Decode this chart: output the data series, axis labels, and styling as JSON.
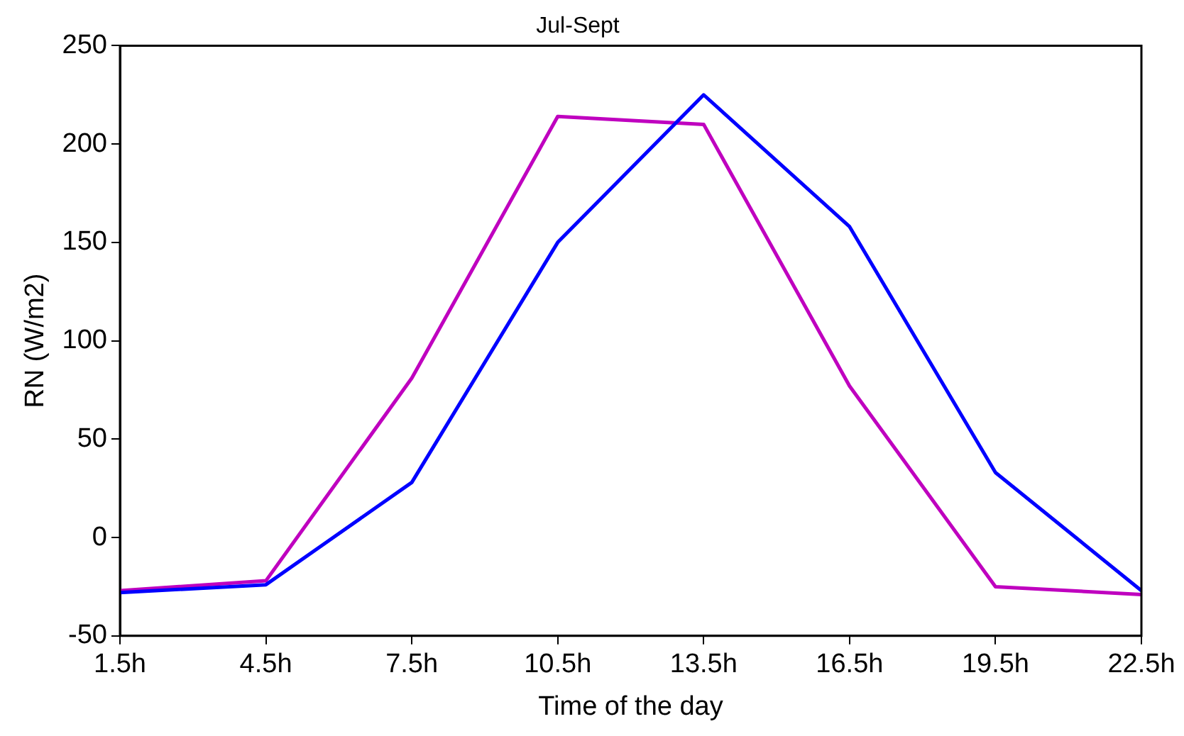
{
  "chart_data": {
    "type": "line",
    "title": "Jul-Sept",
    "xlabel": "Time of the day",
    "ylabel": "RN (W/m2)",
    "x": [
      1.5,
      4.5,
      7.5,
      10.5,
      13.5,
      16.5,
      19.5,
      22.5
    ],
    "series": [
      {
        "color": "#0000ff",
        "values": [
          -28,
          -24,
          28,
          150,
          225,
          158,
          33,
          -27
        ]
      },
      {
        "color": "#bf00bf",
        "values": [
          -27,
          -22,
          81,
          214,
          210,
          77,
          -25,
          -29
        ]
      }
    ],
    "xlim": [
      1.5,
      22.5
    ],
    "xticks": [
      {
        "value": 1.5,
        "label": "1.5h"
      },
      {
        "value": 4.5,
        "label": "4.5h"
      },
      {
        "value": 7.5,
        "label": "7.5h"
      },
      {
        "value": 10.5,
        "label": "10.5h"
      },
      {
        "value": 13.5,
        "label": "13.5h"
      },
      {
        "value": 16.5,
        "label": "16.5h"
      },
      {
        "value": 19.5,
        "label": "19.5h"
      },
      {
        "value": 22.5,
        "label": "22.5h"
      }
    ],
    "ylim": [
      -50,
      250
    ],
    "yticks": [
      -50,
      0,
      50,
      100,
      150,
      200,
      250
    ],
    "grid": false,
    "legend": false,
    "marker": "none",
    "line_style": "solid"
  }
}
